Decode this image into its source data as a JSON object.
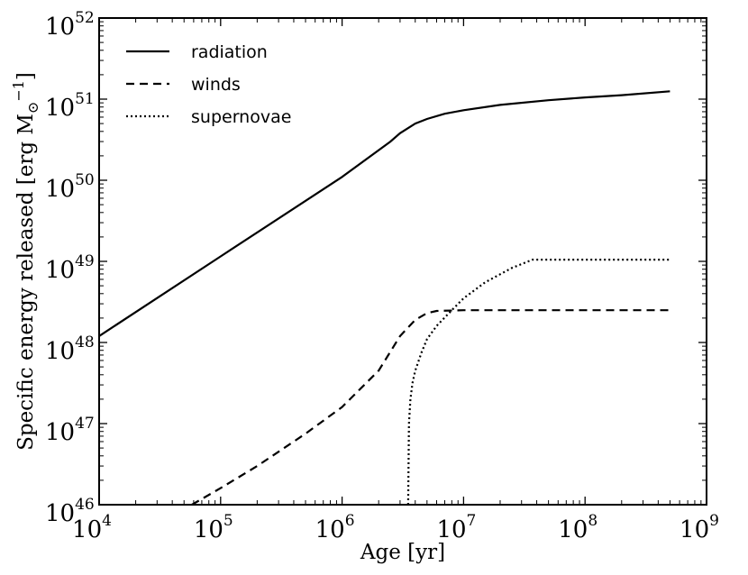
{
  "chart_data": {
    "type": "line",
    "title": "",
    "xlabel": "Age [yr]",
    "ylabel_main": "Specific energy released [erg M",
    "ylabel_sub": "⊙",
    "ylabel_sup": "−1",
    "ylabel_close": "]",
    "xscale": "log",
    "yscale": "log",
    "xlim": [
      10000,
      1000000000
    ],
    "ylim": [
      1e+46,
      1e+52
    ],
    "x_ticks": [
      {
        "base": "10",
        "exp": "4",
        "value": 10000
      },
      {
        "base": "10",
        "exp": "5",
        "value": 100000
      },
      {
        "base": "10",
        "exp": "6",
        "value": 1000000
      },
      {
        "base": "10",
        "exp": "7",
        "value": 10000000
      },
      {
        "base": "10",
        "exp": "8",
        "value": 100000000
      },
      {
        "base": "10",
        "exp": "9",
        "value": 1000000000
      }
    ],
    "y_ticks": [
      {
        "base": "10",
        "exp": "46",
        "value": 1e+46
      },
      {
        "base": "10",
        "exp": "47",
        "value": 1e+47
      },
      {
        "base": "10",
        "exp": "48",
        "value": 1e+48
      },
      {
        "base": "10",
        "exp": "49",
        "value": 1e+49
      },
      {
        "base": "10",
        "exp": "50",
        "value": 1e+50
      },
      {
        "base": "10",
        "exp": "51",
        "value": 1e+51
      },
      {
        "base": "10",
        "exp": "52",
        "value": 1e+52
      }
    ],
    "legend_position": "top-left",
    "series": [
      {
        "name": "radiation",
        "style": "solid",
        "x": [
          10000,
          100000,
          1000000,
          2500000,
          3000000,
          4000000,
          5000000,
          7000000,
          10000000,
          20000000,
          50000000,
          100000000,
          200000000,
          500000000
        ],
        "y": [
          1.2e+48,
          1.15e+49,
          1.1e+50,
          3e+50,
          3.8e+50,
          5e+50,
          5.7e+50,
          6.6e+50,
          7.3e+50,
          8.5e+50,
          9.7e+50,
          1.05e+51,
          1.12e+51,
          1.25e+51
        ]
      },
      {
        "name": "winds",
        "style": "dashed",
        "x": [
          58000,
          100000,
          200000,
          500000,
          1000000,
          2000000,
          3000000,
          4000000,
          5000000,
          6000000,
          10000000,
          100000000,
          500000000
        ],
        "y": [
          1e+46,
          1.6e+46,
          3e+46,
          7.5e+46,
          1.6e+47,
          4.5e+47,
          1.2e+48,
          1.9e+48,
          2.3e+48,
          2.45e+48,
          2.5e+48,
          2.5e+48,
          2.5e+48
        ]
      },
      {
        "name": "supernovae",
        "style": "dotted",
        "x": [
          3500000,
          3550000,
          3650000,
          3800000,
          4000000,
          4500000,
          5000000,
          6000000,
          8000000,
          10000000,
          15000000,
          25000000,
          37000000,
          100000000,
          500000000
        ],
        "y": [
          1e+46,
          1e+47,
          2e+47,
          3.2e+47,
          4.5e+47,
          7.5e+47,
          1.1e+48,
          1.6e+48,
          2.5e+48,
          3.5e+48,
          5.5e+48,
          8.3e+48,
          1.05e+49,
          1.05e+49,
          1.05e+49
        ]
      }
    ]
  }
}
